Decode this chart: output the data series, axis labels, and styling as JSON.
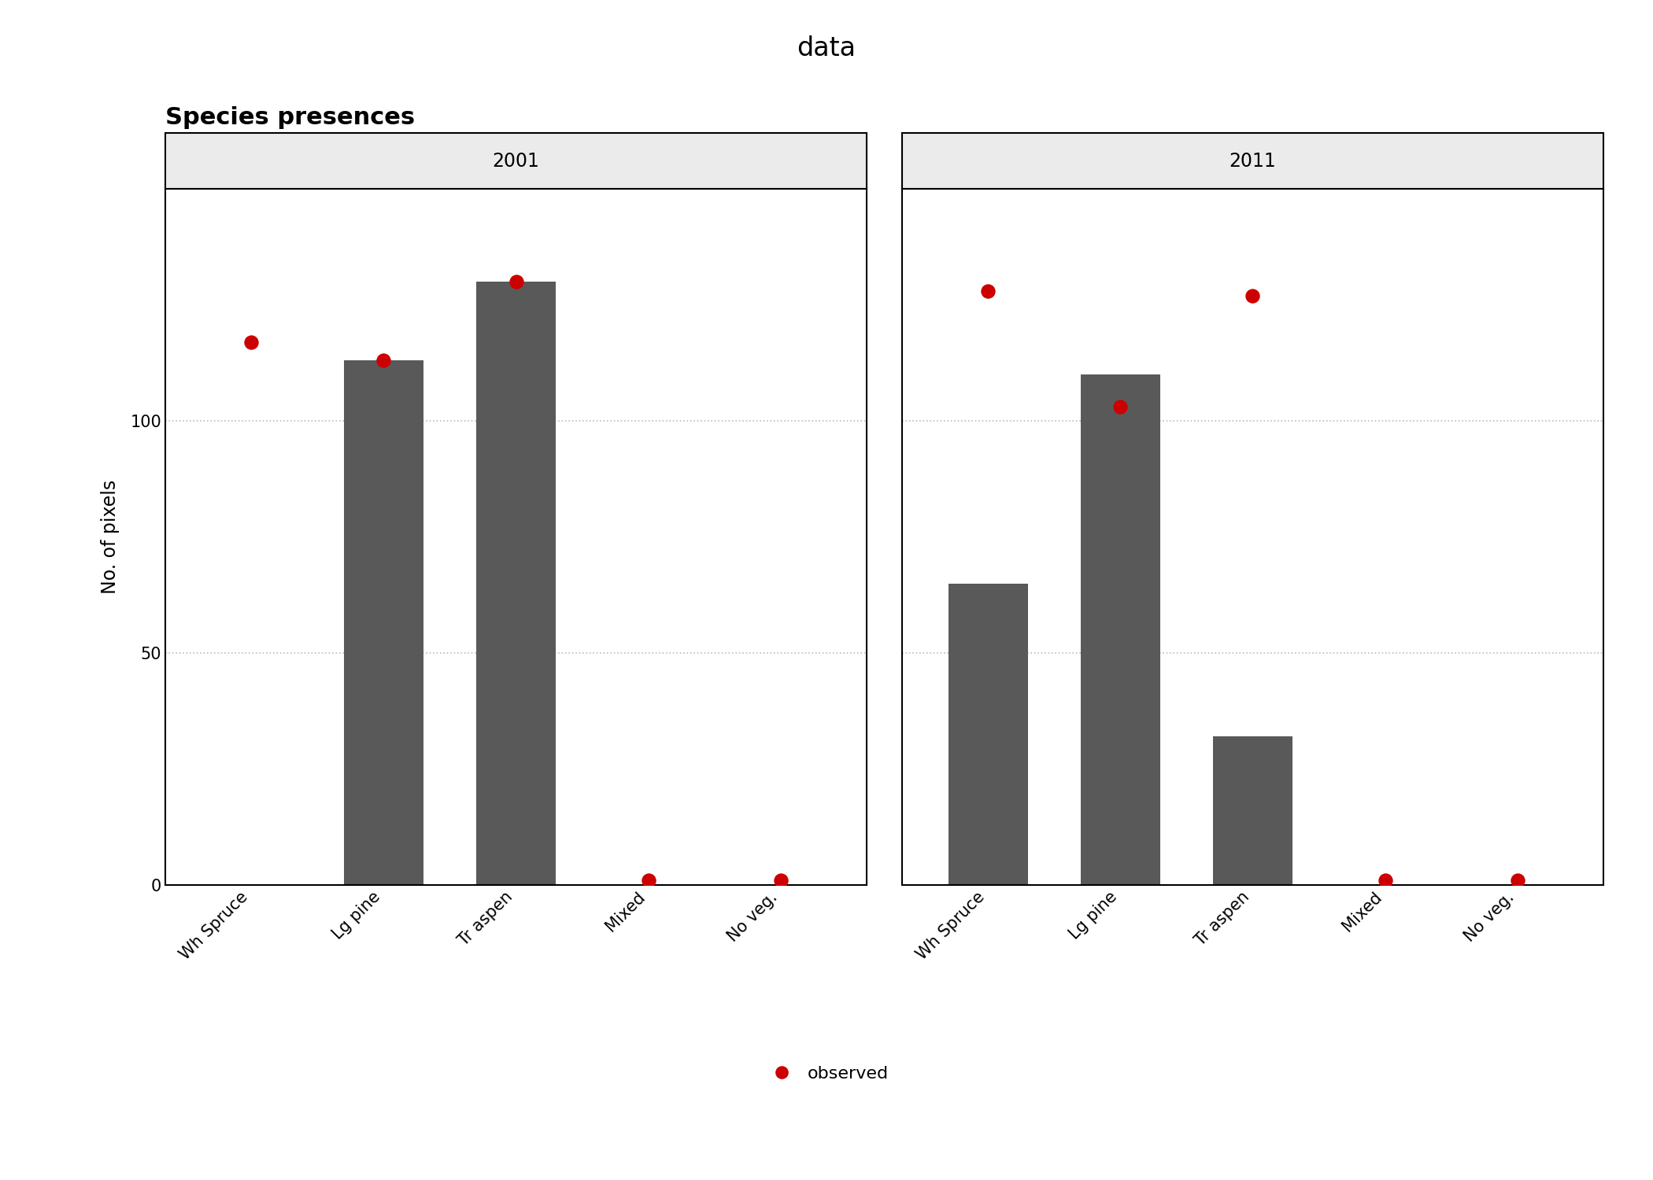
{
  "title": "data",
  "plot_title": "Species presences",
  "ylabel": "No. of pixels",
  "categories": [
    "Wh Spruce",
    "Lg pine",
    "Tr aspen",
    "Mixed",
    "No veg."
  ],
  "facets": [
    "2001",
    "2011"
  ],
  "bar_values": {
    "2001": [
      0,
      113,
      130,
      0,
      0
    ],
    "2011": [
      65,
      110,
      32,
      0,
      0
    ]
  },
  "observed_values": {
    "2001": [
      117,
      113,
      130,
      1,
      1
    ],
    "2011": [
      128,
      103,
      127,
      1,
      1
    ]
  },
  "bar_color": "#595959",
  "observed_color": "#CC0000",
  "background_color": "#FFFFFF",
  "panel_bg_color": "#FFFFFF",
  "facet_label_bg": "#EBEBEB",
  "grid_color": "#BBBBBB",
  "spine_color": "#000000",
  "ylim": [
    0,
    150
  ],
  "yticks": [
    0,
    50,
    100
  ],
  "legend_label": "observed",
  "title_fontsize": 24,
  "plot_title_fontsize": 22,
  "axis_label_fontsize": 17,
  "tick_fontsize": 15,
  "facet_label_fontsize": 17,
  "legend_fontsize": 16
}
